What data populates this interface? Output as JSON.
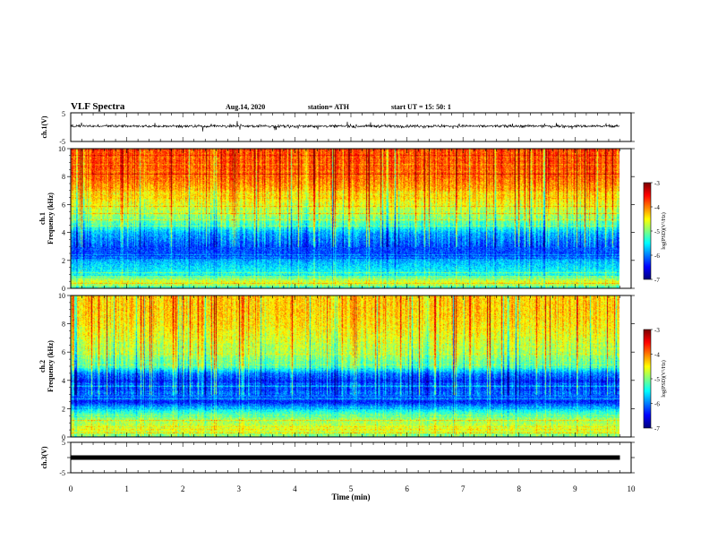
{
  "header": {
    "title": "VLF Spectra",
    "date": "Aug.14, 2020",
    "station": "station= ATH",
    "start": "start  UT =   15: 50: 1"
  },
  "chart_data": [
    {
      "type": "line",
      "panel": "waveform-ch1",
      "ylabel": "ch.1(V)",
      "xlim": [
        0,
        10
      ],
      "ylim": [
        -5,
        5
      ],
      "yticks": [
        "5",
        "-5"
      ],
      "description_value": "noisy waveform roughly between -1 and 1.5 V"
    },
    {
      "type": "heatmap",
      "panel": "spectrogram-ch1",
      "ylabel": "ch.1\nFrequency  (kHz)",
      "ylabel_line1": "ch.1",
      "ylabel_line2": "Frequency  (kHz)",
      "xlim": [
        0,
        9.8
      ],
      "ylim": [
        0,
        10
      ],
      "yticks": [
        "0",
        "2",
        "4",
        "6",
        "8",
        "10"
      ],
      "colorbar": {
        "label": "log(PSD)(V²/Hz)",
        "range": [
          -7,
          -3
        ],
        "ticks": [
          "-3",
          "-4",
          "-5",
          "-6",
          "-7"
        ]
      },
      "profile_freq_khz": [
        0.0,
        0.5,
        1.0,
        1.5,
        2.0,
        2.5,
        3.0,
        3.5,
        4.0,
        4.5,
        5.0,
        6.0,
        7.0,
        8.0,
        9.0,
        10.0
      ],
      "profile_log_psd": [
        -5.4,
        -4.6,
        -5.4,
        -5.6,
        -5.8,
        -6.2,
        -6.2,
        -6.0,
        -5.8,
        -5.3,
        -5.0,
        -4.6,
        -4.2,
        -3.9,
        -3.8,
        -3.8
      ]
    },
    {
      "type": "heatmap",
      "panel": "spectrogram-ch2",
      "ylabel_line1": "ch.2",
      "ylabel_line2": "Frequency  (kHz)",
      "xlim": [
        0,
        9.8
      ],
      "ylim": [
        0,
        10
      ],
      "yticks": [
        "0",
        "2",
        "4",
        "6",
        "8",
        "10"
      ],
      "colorbar": {
        "label": "log(PSD)(V²/Hz)",
        "range": [
          -7,
          -3
        ],
        "ticks": [
          "-3",
          "-4",
          "-5",
          "-6",
          "-7"
        ]
      },
      "profile_freq_khz": [
        0.0,
        0.5,
        1.0,
        1.5,
        2.0,
        2.5,
        3.0,
        3.5,
        4.0,
        4.5,
        5.0,
        6.0,
        7.0,
        8.0,
        9.0,
        10.0
      ],
      "profile_log_psd": [
        -5.2,
        -4.6,
        -4.8,
        -5.0,
        -5.6,
        -6.4,
        -6.0,
        -6.2,
        -6.3,
        -6.0,
        -5.2,
        -4.8,
        -4.6,
        -4.4,
        -4.3,
        -4.3
      ]
    },
    {
      "type": "line",
      "panel": "waveform-ch3",
      "ylabel": "ch.3(V)",
      "xlim": [
        0,
        10
      ],
      "ylim": [
        -5,
        5
      ],
      "yticks": [
        "5",
        "0",
        "-5"
      ],
      "value_volts": 0
    }
  ],
  "xaxis": {
    "label": "Time  (min)",
    "ticks": [
      "0",
      "1",
      "2",
      "3",
      "4",
      "5",
      "6",
      "7",
      "8",
      "9",
      "10"
    ]
  },
  "colors": {
    "axis": "#000000",
    "jet": [
      "#00007f",
      "#0000ff",
      "#00bfff",
      "#00ff80",
      "#80ff00",
      "#ffff00",
      "#ff8000",
      "#ff0000",
      "#7f0000"
    ]
  }
}
